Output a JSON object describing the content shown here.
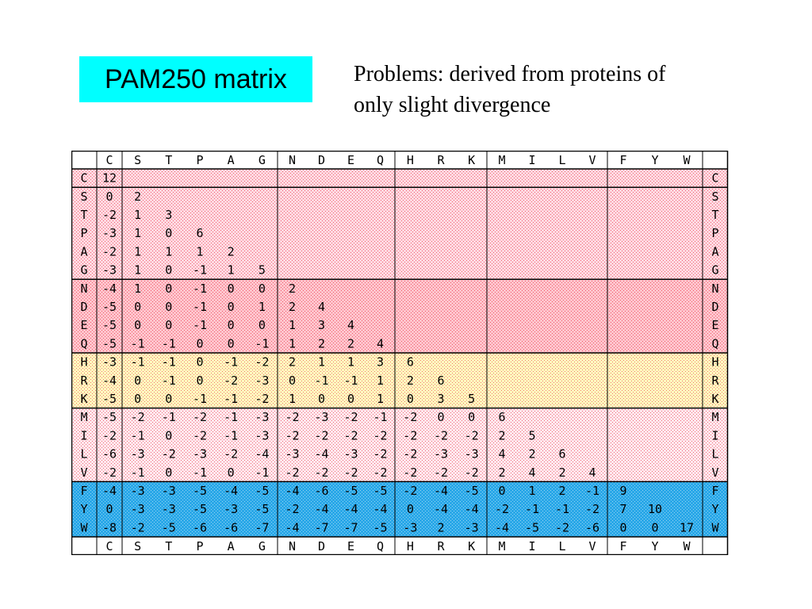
{
  "title": "PAM250 matrix",
  "note": {
    "line1": "Problems: derived from proteins of",
    "line2": "only slight divergence"
  },
  "colors": {
    "title_bg": "#00ffff",
    "group_cysteine": "#ffd8e0",
    "group_small": "#ffd8e0",
    "group_acid_amide": "#ffc4cc",
    "group_basic": "#ffffc0",
    "group_hydrophobic": "#ffe8ee",
    "group_aromatic": "#2aa8e8"
  },
  "matrix": {
    "amino_acids": [
      "C",
      "S",
      "T",
      "P",
      "A",
      "G",
      "N",
      "D",
      "E",
      "Q",
      "H",
      "R",
      "K",
      "M",
      "I",
      "L",
      "V",
      "F",
      "Y",
      "W"
    ],
    "groups": [
      {
        "name": "cysteine",
        "start": 0,
        "end": 0,
        "color_key": "group_cysteine"
      },
      {
        "name": "small",
        "start": 1,
        "end": 5,
        "color_key": "group_small"
      },
      {
        "name": "acid_amide",
        "start": 6,
        "end": 9,
        "color_key": "group_acid_amide"
      },
      {
        "name": "basic",
        "start": 10,
        "end": 12,
        "color_key": "group_basic"
      },
      {
        "name": "hydrophobic",
        "start": 13,
        "end": 16,
        "color_key": "group_hydrophobic"
      },
      {
        "name": "aromatic",
        "start": 17,
        "end": 19,
        "color_key": "group_aromatic"
      }
    ],
    "rows": [
      [
        12
      ],
      [
        0,
        2
      ],
      [
        -2,
        1,
        3
      ],
      [
        -3,
        1,
        0,
        6
      ],
      [
        -2,
        1,
        1,
        1,
        2
      ],
      [
        -3,
        1,
        0,
        -1,
        1,
        5
      ],
      [
        -4,
        1,
        0,
        -1,
        0,
        0,
        2
      ],
      [
        -5,
        0,
        0,
        -1,
        0,
        1,
        2,
        4
      ],
      [
        -5,
        0,
        0,
        -1,
        0,
        0,
        1,
        3,
        4
      ],
      [
        -5,
        -1,
        -1,
        0,
        0,
        -1,
        1,
        2,
        2,
        4
      ],
      [
        -3,
        -1,
        -1,
        0,
        -1,
        -2,
        2,
        1,
        1,
        3,
        6
      ],
      [
        -4,
        0,
        -1,
        0,
        -2,
        -3,
        0,
        -1,
        -1,
        1,
        2,
        6
      ],
      [
        -5,
        0,
        0,
        -1,
        -1,
        -2,
        1,
        0,
        0,
        1,
        0,
        3,
        5
      ],
      [
        -5,
        -2,
        -1,
        -2,
        -1,
        -3,
        -2,
        -3,
        -2,
        -1,
        -2,
        0,
        0,
        6
      ],
      [
        -2,
        -1,
        0,
        -2,
        -1,
        -3,
        -2,
        -2,
        -2,
        -2,
        -2,
        -2,
        -2,
        2,
        5
      ],
      [
        -6,
        -3,
        -2,
        -3,
        -2,
        -4,
        -3,
        -4,
        -3,
        -2,
        -2,
        -3,
        -3,
        4,
        2,
        6
      ],
      [
        -2,
        -1,
        0,
        -1,
        0,
        -1,
        -2,
        -2,
        -2,
        -2,
        -2,
        -2,
        -2,
        2,
        4,
        2,
        4
      ],
      [
        -4,
        -3,
        -3,
        -5,
        -4,
        -5,
        -4,
        -6,
        -5,
        -5,
        -2,
        -4,
        -5,
        0,
        1,
        2,
        -1,
        9
      ],
      [
        0,
        -3,
        -3,
        -5,
        -3,
        -5,
        -2,
        -4,
        -4,
        -4,
        0,
        -4,
        -4,
        -2,
        -1,
        -1,
        -2,
        7,
        10
      ],
      [
        -8,
        -2,
        -5,
        -6,
        -6,
        -7,
        -4,
        -7,
        -7,
        -5,
        -3,
        2,
        -3,
        -4,
        -5,
        -2,
        -6,
        0,
        0,
        17
      ]
    ]
  }
}
